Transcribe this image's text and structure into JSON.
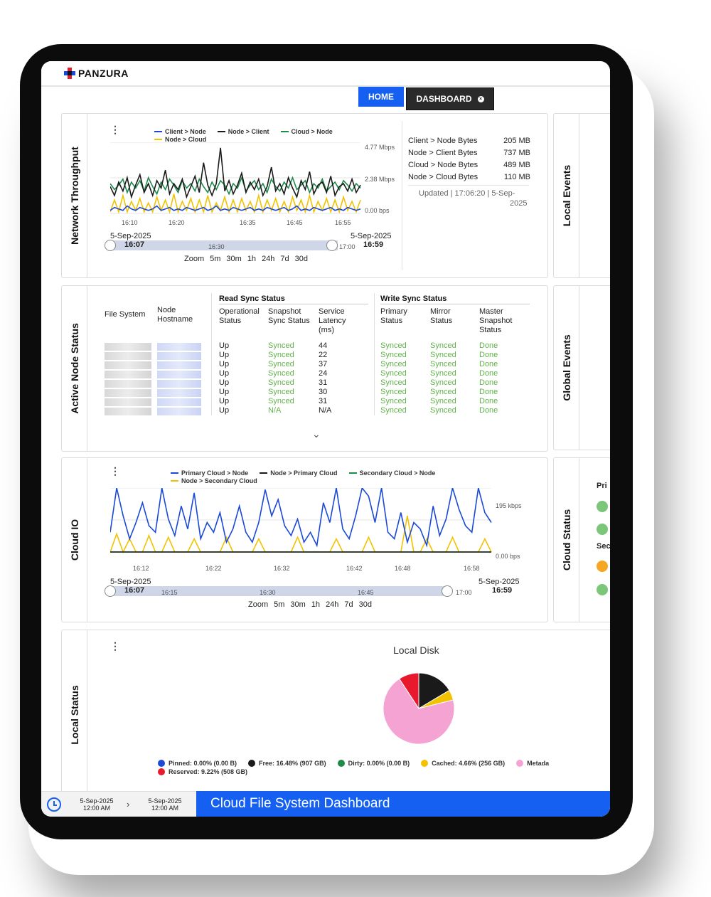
{
  "brand": "PANZURA",
  "nav": {
    "home": "HOME",
    "dashboard": "DASHBOARD"
  },
  "colors": {
    "accent": "#1560f0",
    "blue": "#1a49d8",
    "black": "#1a1a1a",
    "green": "#1f8a4c",
    "yellow": "#f2c200",
    "pink": "#f4a3d3",
    "red": "#e8192c",
    "status_green": "#7cc67a",
    "status_orange": "#f5a623"
  },
  "network": {
    "title": "Network Throughput",
    "legend": [
      "Client > Node",
      "Node > Client",
      "Cloud > Node",
      "Node > Cloud"
    ],
    "y_ticks": [
      "4.77 Mbps",
      "2.38 Mbps",
      "0.00 bps"
    ],
    "x_ticks": [
      "16:10",
      "16:20",
      "16:35",
      "16:45",
      "16:55"
    ],
    "range_start_date": "5-Sep-2025",
    "range_start_time": "16:07",
    "range_end_date": "5-Sep-2025",
    "range_end_time": "16:59",
    "range_ticks": [
      "16:30",
      "17:00"
    ],
    "zoom_label": "Zoom",
    "zoom_options": [
      "5m",
      "30m",
      "1h",
      "24h",
      "7d",
      "30d"
    ],
    "stats": [
      {
        "label": "Client > Node Bytes",
        "value": "205 MB"
      },
      {
        "label": "Node > Client Bytes",
        "value": "737 MB"
      },
      {
        "label": "Cloud > Node Bytes",
        "value": "489 MB"
      },
      {
        "label": "Node > Cloud Bytes",
        "value": "110 MB"
      }
    ],
    "updated": "Updated | 17:06:20 | 5-Sep-",
    "updated_year": "2025"
  },
  "local_events": {
    "title": "Local Events"
  },
  "global_events": {
    "title": "Global Events"
  },
  "cloud_status": {
    "title": "Cloud Status",
    "primary_label": "Pri",
    "secondary_label": "Sec"
  },
  "active_nodes": {
    "title": "Active Node Status",
    "col_file_system": "File System",
    "col_node_hostname": "Node Hostname",
    "read_group": "Read Sync Status",
    "write_group": "Write Sync Status",
    "col_operational": "Operational Status",
    "col_snapshot": "Snapshot Sync Status",
    "col_latency": "Service Latency (ms)",
    "col_primary": "Primary Status",
    "col_mirror": "Mirror Status",
    "col_master": "Master Snapshot Status",
    "rows": [
      {
        "op": "Up",
        "snap": "Synced",
        "lat": "44",
        "pri": "Synced",
        "mir": "Synced",
        "mas": "Done"
      },
      {
        "op": "Up",
        "snap": "Synced",
        "lat": "22",
        "pri": "Synced",
        "mir": "Synced",
        "mas": "Done"
      },
      {
        "op": "Up",
        "snap": "Synced",
        "lat": "37",
        "pri": "Synced",
        "mir": "Synced",
        "mas": "Done"
      },
      {
        "op": "Up",
        "snap": "Synced",
        "lat": "24",
        "pri": "Synced",
        "mir": "Synced",
        "mas": "Done"
      },
      {
        "op": "Up",
        "snap": "Synced",
        "lat": "31",
        "pri": "Synced",
        "mir": "Synced",
        "mas": "Done"
      },
      {
        "op": "Up",
        "snap": "Synced",
        "lat": "30",
        "pri": "Synced",
        "mir": "Synced",
        "mas": "Done"
      },
      {
        "op": "Up",
        "snap": "Synced",
        "lat": "31",
        "pri": "Synced",
        "mir": "Synced",
        "mas": "Done"
      },
      {
        "op": "Up",
        "snap": "N/A",
        "lat": "N/A",
        "pri": "Synced",
        "mir": "Synced",
        "mas": "Done"
      }
    ]
  },
  "cloud_io": {
    "title": "Cloud IO",
    "legend": [
      "Primary Cloud > Node",
      "Node > Primary Cloud",
      "Secondary Cloud > Node",
      "Node > Secondary Cloud"
    ],
    "y_ticks": [
      "195 kbps",
      "0.00 bps"
    ],
    "x_ticks": [
      "16:12",
      "16:22",
      "16:32",
      "16:42",
      "16:48",
      "16:58"
    ],
    "range_start_date": "5-Sep-2025",
    "range_start_time": "16:07",
    "range_end_date": "5-Sep-2025",
    "range_end_time": "16:59",
    "range_ticks": [
      "16:15",
      "16:30",
      "16:45",
      "17:00"
    ],
    "zoom_label": "Zoom",
    "zoom_options": [
      "5m",
      "30m",
      "1h",
      "24h",
      "7d",
      "30d"
    ]
  },
  "local_status": {
    "title": "Local Status",
    "chart_title": "Local Disk",
    "legend": [
      {
        "label": "Pinned: 0.00% (0.00 B)",
        "color": "#1a49d8"
      },
      {
        "label": "Free: 16.48% (907 GB)",
        "color": "#1a1a1a"
      },
      {
        "label": "Dirty: 0.00% (0.00 B)",
        "color": "#1f8a4c"
      },
      {
        "label": "Cached: 4.66% (256 GB)",
        "color": "#f2c200"
      },
      {
        "label": "Metada",
        "color": "#f4a3d3"
      },
      {
        "label": "Reserved: 9.22% (508 GB)",
        "color": "#e8192c"
      }
    ]
  },
  "footer": {
    "from_date": "5-Sep-2025",
    "from_time": "12:00 AM",
    "to_date": "5-Sep-2025",
    "to_time": "12:00 AM",
    "title": "Cloud File System Dashboard"
  },
  "chart_data": [
    {
      "type": "line",
      "title": "",
      "ylabel": "Mbps",
      "ylim": [
        0,
        4.77
      ],
      "x_ticks": [
        "16:10",
        "16:20",
        "16:35",
        "16:45",
        "16:55"
      ],
      "series": [
        {
          "name": "Client > Node",
          "color": "#1a49d8",
          "values": [
            0.2,
            0.4,
            0.3,
            0.2,
            0.5,
            0.3,
            0.2,
            0.4,
            0.3,
            0.2,
            0.3,
            0.5,
            0.2,
            0.3,
            0.4,
            0.2,
            0.3,
            0.2,
            0.4,
            0.3,
            0.2,
            0.3,
            0.4,
            0.2,
            0.3,
            0.5,
            0.2,
            0.3,
            0.2,
            0.4,
            0.3,
            0.2,
            0.3,
            0.4,
            0.2,
            0.3,
            0.2,
            0.4,
            0.3,
            0.2,
            0.3,
            0.4,
            0.2,
            0.3,
            0.5,
            0.2,
            0.3,
            0.2,
            0.4,
            0.3,
            0.2,
            0.3,
            0.4,
            0.2,
            0.3,
            0.2,
            0.4,
            0.3,
            0.2,
            0.3
          ]
        },
        {
          "name": "Node > Client",
          "color": "#1a1a1a",
          "values": [
            1.8,
            1.2,
            2.1,
            1.5,
            2.4,
            1.1,
            1.9,
            2.6,
            1.4,
            2.0,
            1.2,
            2.2,
            1.7,
            2.9,
            1.3,
            2.0,
            1.6,
            2.3,
            1.1,
            1.8,
            2.5,
            1.4,
            3.4,
            1.9,
            1.2,
            2.0,
            4.4,
            1.5,
            2.2,
            1.3,
            1.9,
            2.7,
            1.4,
            2.1,
            1.6,
            2.3,
            1.2,
            1.8,
            3.1,
            1.5,
            2.0,
            1.3,
            2.4,
            1.7,
            1.1,
            2.2,
            1.6,
            2.8,
            1.3,
            1.9,
            2.1,
            1.4,
            2.5,
            1.2,
            1.8,
            2.0,
            1.5,
            2.3,
            1.4,
            1.9
          ]
        },
        {
          "name": "Cloud > Node",
          "color": "#1f8a4c",
          "values": [
            2.0,
            1.6,
            1.9,
            2.3,
            1.4,
            2.1,
            1.7,
            2.2,
            1.5,
            2.4,
            1.8,
            1.3,
            2.1,
            1.6,
            2.3,
            1.9,
            1.4,
            2.2,
            1.7,
            2.0,
            1.5,
            2.3,
            1.8,
            1.4,
            2.1,
            1.6,
            2.2,
            1.9,
            1.3,
            2.0,
            1.7,
            2.4,
            1.5,
            1.9,
            2.2,
            1.6,
            2.0,
            1.4,
            2.3,
            1.8,
            1.5,
            2.1,
            1.7,
            2.4,
            1.6,
            1.9,
            2.2,
            1.4,
            2.0,
            1.7,
            2.3,
            1.5,
            1.8,
            2.1,
            1.6,
            2.2,
            1.9,
            1.5,
            2.0,
            1.7
          ]
        },
        {
          "name": "Node > Cloud",
          "color": "#f2c200",
          "values": [
            0.1,
            0.9,
            0.1,
            1.2,
            0.1,
            0.8,
            0.2,
            1.0,
            0.1,
            0.7,
            0.1,
            1.1,
            0.2,
            0.9,
            0.1,
            1.3,
            0.1,
            0.8,
            0.2,
            1.0,
            0.1,
            0.9,
            0.1,
            1.2,
            0.1,
            0.7,
            0.2,
            1.1,
            0.1,
            0.9,
            0.1,
            1.0,
            0.2,
            0.8,
            0.1,
            1.2,
            0.1,
            0.9,
            0.2,
            1.0,
            0.1,
            0.8,
            0.1,
            1.1,
            0.2,
            0.9,
            0.1,
            1.2,
            0.1,
            0.8,
            0.2,
            1.0,
            0.1,
            0.9,
            0.1,
            1.1,
            0.2,
            0.8,
            0.1,
            0.9
          ]
        }
      ]
    },
    {
      "type": "line",
      "title": "",
      "ylabel": "kbps",
      "ylim": [
        0,
        195
      ],
      "x_ticks": [
        "16:12",
        "16:22",
        "16:32",
        "16:42",
        "16:48",
        "16:58"
      ],
      "series": [
        {
          "name": "Primary Cloud > Node",
          "color": "#1a49d8",
          "values": [
            60,
            200,
            110,
            40,
            90,
            150,
            80,
            60,
            230,
            100,
            50,
            140,
            70,
            180,
            40,
            90,
            60,
            120,
            30,
            70,
            140,
            60,
            30,
            90,
            190,
            110,
            160,
            80,
            50,
            100,
            30,
            60,
            20,
            150,
            90,
            200,
            70,
            40,
            110,
            230,
            170,
            90,
            210,
            60,
            40,
            120,
            30,
            90,
            70,
            20,
            140,
            50,
            100,
            230,
            130,
            80,
            60,
            200,
            120,
            90
          ]
        },
        {
          "name": "Node > Primary Cloud",
          "color": "#1a1a1a",
          "values": [
            0,
            0,
            0,
            0,
            0,
            0,
            0,
            0,
            0,
            0,
            0,
            0,
            0,
            0,
            0,
            0,
            0,
            0,
            0,
            0,
            0,
            0,
            0,
            0,
            0,
            0,
            0,
            0,
            0,
            0,
            0,
            0,
            0,
            0,
            0,
            0,
            0,
            0,
            0,
            0,
            0,
            0,
            0,
            0,
            0,
            0,
            0,
            0,
            0,
            0,
            0,
            0,
            0,
            0,
            0,
            0,
            0,
            0,
            0,
            0
          ]
        },
        {
          "name": "Secondary Cloud > Node",
          "color": "#1f8a4c",
          "values": [
            0,
            0,
            0,
            0,
            0,
            0,
            0,
            0,
            0,
            0,
            0,
            0,
            0,
            0,
            0,
            0,
            0,
            0,
            0,
            0,
            0,
            0,
            0,
            0,
            0,
            0,
            0,
            0,
            0,
            0,
            0,
            0,
            0,
            0,
            0,
            0,
            0,
            0,
            0,
            0,
            0,
            0,
            0,
            0,
            0,
            0,
            0,
            0,
            0,
            0,
            0,
            0,
            0,
            0,
            0,
            0,
            0,
            0,
            0,
            0
          ]
        },
        {
          "name": "Node > Secondary Cloud",
          "color": "#f2c200",
          "values": [
            0,
            55,
            0,
            40,
            0,
            0,
            50,
            0,
            0,
            45,
            0,
            0,
            0,
            40,
            0,
            0,
            0,
            0,
            45,
            0,
            0,
            0,
            0,
            40,
            0,
            0,
            0,
            0,
            0,
            45,
            0,
            0,
            0,
            0,
            0,
            40,
            0,
            0,
            0,
            0,
            45,
            0,
            0,
            0,
            0,
            0,
            110,
            0,
            0,
            40,
            0,
            0,
            0,
            45,
            0,
            0,
            0,
            0,
            40,
            0
          ]
        }
      ]
    },
    {
      "type": "pie",
      "title": "Local Disk",
      "slices": [
        {
          "name": "Pinned",
          "value": 0.0,
          "color": "#1a49d8"
        },
        {
          "name": "Free",
          "value": 16.48,
          "color": "#1a1a1a"
        },
        {
          "name": "Dirty",
          "value": 0.0,
          "color": "#1f8a4c"
        },
        {
          "name": "Cached",
          "value": 4.66,
          "color": "#f2c200"
        },
        {
          "name": "Metadata",
          "value": 69.64,
          "color": "#f4a3d3"
        },
        {
          "name": "Reserved",
          "value": 9.22,
          "color": "#e8192c"
        }
      ]
    }
  ]
}
